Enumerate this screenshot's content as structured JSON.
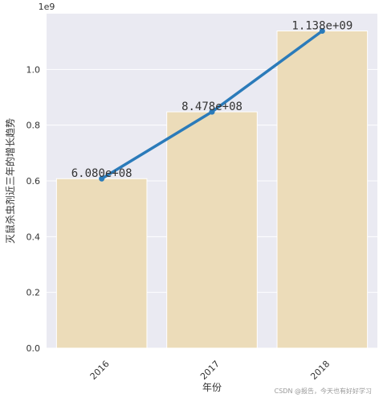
{
  "chart_data": {
    "type": "bar",
    "categories": [
      "2016",
      "2017",
      "2018"
    ],
    "values": [
      608000000,
      847800000,
      1138000000
    ],
    "data_labels": [
      "6.080e+08",
      "8.478e+08",
      "1.138e+09"
    ],
    "line_values": [
      608000000,
      847800000,
      1138000000
    ],
    "xlabel": "年份",
    "ylabel": "灭鼠杀虫剂近三年的增长趋势",
    "y_scale_label": "1e9",
    "ylim": [
      0,
      1200000000
    ],
    "yticks": [
      0,
      200000000,
      400000000,
      600000000,
      800000000,
      1000000000
    ],
    "ytick_labels": [
      "0.0",
      "0.2",
      "0.4",
      "0.6",
      "0.8",
      "1.0"
    ],
    "grid": true,
    "colors": {
      "bar": "#ecdcb9",
      "line": "#2b7bba",
      "background": "#eaeaf2",
      "grid": "#ffffff"
    }
  },
  "watermark": "CSDN @报告，今天也有好好学习"
}
